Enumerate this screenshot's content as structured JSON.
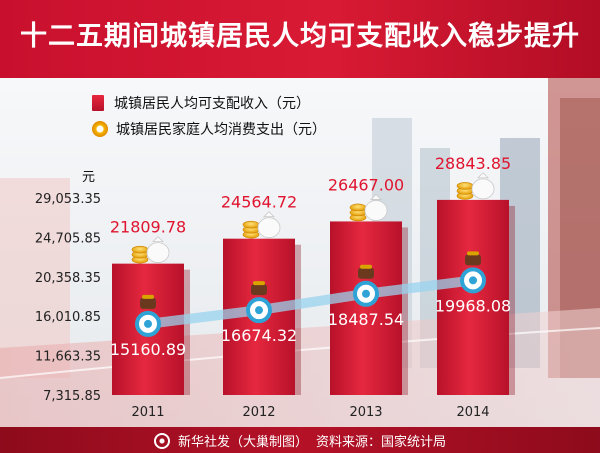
{
  "title": "十二五期间城镇居民人均可支配收入稳步提升",
  "footer": {
    "agency": "新华社发（大巢制图）",
    "source": "资料来源：国家统计局"
  },
  "colors": {
    "title_bg": "#c8102e",
    "bar": "#d4152f",
    "line": "#7fc8e8",
    "marker_ring": "#2fa3d6",
    "coin": "#f5b400",
    "label_red": "#e0142f"
  },
  "icons": [
    "coin-stack-icon",
    "money-bag-icon",
    "coin-purse-icon",
    "xinhua-logo-icon"
  ],
  "chart_data": {
    "type": "bar",
    "unit": "元",
    "categories": [
      "2011",
      "2012",
      "2013",
      "2014"
    ],
    "series": [
      {
        "name": "城镇居民人均可支配收入（元）",
        "type": "bar",
        "values": [
          21809.78,
          24564.72,
          26467.0,
          28843.85
        ],
        "labels": [
          "21809.78",
          "24564.72",
          "26467.00",
          "28843.85"
        ]
      },
      {
        "name": "城镇居民家庭人均消费支出（元）",
        "type": "line",
        "values": [
          15160.89,
          16674.32,
          18487.54,
          19968.08
        ],
        "labels": [
          "15160.89",
          "16674.32",
          "18487.54",
          "19968.08"
        ]
      }
    ],
    "yticks": [
      7315.85,
      11663.35,
      16010.85,
      20358.35,
      24705.85,
      29053.35
    ],
    "ytick_labels": [
      "7,315.85",
      "11,663.35",
      "16,010.85",
      "20,358.35",
      "24,705.85",
      "29,053.35"
    ],
    "ylim": [
      7315.85,
      29053.35
    ],
    "grid": false,
    "legend_position": "top-left"
  }
}
